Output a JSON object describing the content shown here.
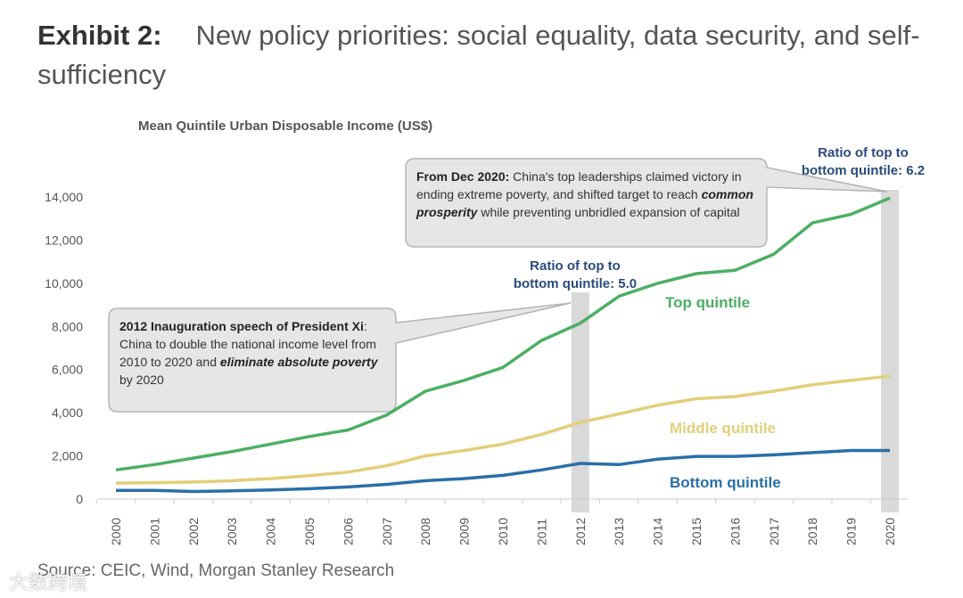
{
  "header": {
    "exhibit": "Exhibit 2:",
    "title": "New policy priorities: social equality, data security, and self-sufficiency"
  },
  "chart_data": {
    "type": "line",
    "title": "Mean Quintile Urban Disposable Income (US$)",
    "x": [
      2000,
      2001,
      2002,
      2003,
      2004,
      2005,
      2006,
      2007,
      2008,
      2009,
      2010,
      2011,
      2012,
      2013,
      2014,
      2015,
      2016,
      2017,
      2018,
      2019,
      2020
    ],
    "x_tick_labels": [
      "2000",
      "2001",
      "2002",
      "2003",
      "2004",
      "2005",
      "2006",
      "2007",
      "2008",
      "2009",
      "2010",
      "2011",
      "2012",
      "2013",
      "2014",
      "2015",
      "2016",
      "2017",
      "2018",
      "2019",
      "2020"
    ],
    "y_ticks": [
      0,
      2000,
      4000,
      6000,
      8000,
      10000,
      12000,
      14000
    ],
    "y_tick_labels": [
      "0",
      "2,000",
      "4,000",
      "6,000",
      "8,000",
      "10,000",
      "12,000",
      "14,000"
    ],
    "ylim": [
      0,
      14000
    ],
    "series": [
      {
        "name": "Top quintile",
        "color": "#4caf63",
        "values": [
          1350,
          1600,
          1900,
          2200,
          2550,
          2900,
          3200,
          3900,
          5000,
          5500,
          6100,
          7350,
          8150,
          9400,
          10000,
          10450,
          10600,
          11350,
          12800,
          13200,
          13950
        ]
      },
      {
        "name": "Middle quintile",
        "color": "#e3cf7a",
        "values": [
          740,
          760,
          790,
          850,
          950,
          1080,
          1250,
          1550,
          2000,
          2250,
          2550,
          3000,
          3550,
          3950,
          4350,
          4650,
          4750,
          5000,
          5300,
          5500,
          5700
        ]
      },
      {
        "name": "Bottom quintile",
        "color": "#2a6fa8",
        "values": [
          400,
          400,
          350,
          380,
          420,
          480,
          560,
          680,
          850,
          950,
          1100,
          1350,
          1650,
          1600,
          1850,
          1980,
          1980,
          2050,
          2150,
          2250,
          2250
        ]
      }
    ],
    "highlights": [
      2012,
      2020
    ],
    "annotations": {
      "ratio_2012": [
        "Ratio of top to",
        "bottom quintile: 5.0"
      ],
      "ratio_2020": [
        "Ratio of top to",
        "bottom quintile: 6.2"
      ],
      "callout_2012": {
        "bold": "2012 Inauguration speech of President Xi",
        "text1": ": China to double the national income level from 2010 to 2020 and ",
        "bold_italic": "eliminate absolute poverty",
        "text2": " by 2020"
      },
      "callout_2020": {
        "bold": "From Dec 2020:",
        "text1": " China's top leaderships claimed victory in ending extreme poverty, and shifted target to reach ",
        "bold_italic": "common prosperity",
        "text2": " while preventing unbridled expansion of capital"
      }
    }
  },
  "footer": {
    "source": "Source: CEIC, Wind, Morgan Stanley Research",
    "watermark": "大数跨境"
  }
}
